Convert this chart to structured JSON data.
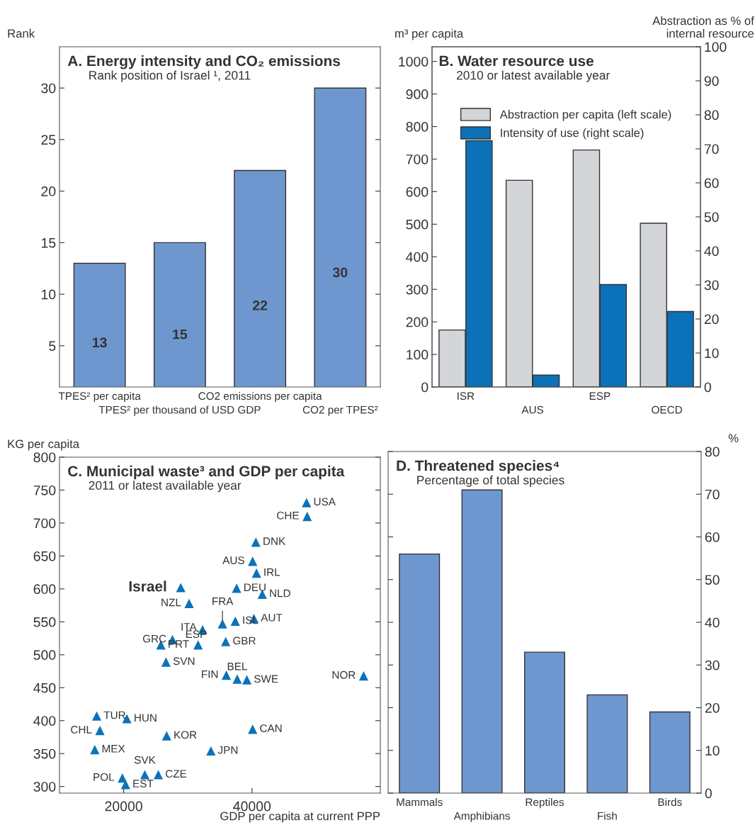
{
  "chart_data": [
    {
      "type": "bar",
      "title": "A. Energy intensity and CO₂ emissions",
      "subtitle": "Rank position of Israel ¹, 2011",
      "ylabel": "Rank",
      "categories": [
        "TPES² per capita",
        "TPES² per thousand of USD GDP",
        "CO2 emissions per capita",
        "CO2 per TPES²"
      ],
      "values": [
        13,
        15,
        22,
        30
      ],
      "color": "#6f97cf",
      "data_labels": true,
      "ylim": [
        1,
        34
      ],
      "yticks": [
        5,
        10,
        15,
        20,
        25,
        30
      ],
      "grid": false,
      "legend": false
    },
    {
      "type": "bar",
      "title": "B. Water resource use",
      "subtitle": "2010 or latest available year",
      "ylabel": "m³ per capita",
      "y2label": "Abstraction as % of\ninternal resource",
      "categories": [
        "ISR",
        "AUS",
        "ESP",
        "OECD"
      ],
      "series": [
        {
          "name": "Abstraction per capita (left scale)",
          "color": "#d4d5d8",
          "values": [
            175,
            635,
            728,
            503
          ]
        },
        {
          "name": "Intensity of use (right scale)",
          "color": "#0b72b9",
          "axis": "y2",
          "values": [
            72.4,
            3.5,
            30.1,
            22.2
          ]
        }
      ],
      "ylim": [
        0,
        1045
      ],
      "yticks": [
        0,
        100,
        200,
        300,
        400,
        500,
        600,
        700,
        800,
        900,
        1000
      ],
      "y2lim": [
        0,
        100
      ],
      "y2ticks": [
        0,
        10,
        20,
        30,
        40,
        50,
        60,
        70,
        80,
        90,
        100
      ],
      "grid": false,
      "legend": "top"
    },
    {
      "type": "scatter",
      "title": "C. Municipal waste³ and GDP per capita",
      "subtitle": "2011 or latest available year",
      "ylabel": "KG per capita",
      "xlabel": "GDP per capita at current PPP",
      "series": [
        {
          "color": "#0b72b9",
          "x": [
            28900,
            48500,
            48600,
            40600,
            40100,
            40700,
            37600,
            41600,
            30200,
            35400,
            37400,
            40300,
            32300,
            27600,
            25800,
            31600,
            35900,
            26600,
            36000,
            37700,
            39200,
            57400,
            15800,
            20500,
            16300,
            26700,
            40100,
            15500,
            33600,
            23300,
            25400,
            19800,
            20300
          ],
          "values": [
            602,
            731,
            710,
            671,
            642,
            624,
            601,
            592,
            578,
            547,
            551,
            555,
            538,
            523,
            515,
            515,
            520,
            489,
            469,
            463,
            462,
            468,
            407,
            403,
            385,
            377,
            387,
            356,
            354,
            318,
            318,
            313,
            303
          ]
        }
      ],
      "annotations": [
        {
          "text": "Israel",
          "x": 28900,
          "y": 602
        },
        {
          "text": "USA",
          "x": 48500,
          "y": 731
        },
        {
          "text": "CHE",
          "x": 48600,
          "y": 710
        },
        {
          "text": "DNK",
          "x": 40600,
          "y": 671
        },
        {
          "text": "AUS",
          "x": 40100,
          "y": 642
        },
        {
          "text": "IRL",
          "x": 40700,
          "y": 624
        },
        {
          "text": "DEU",
          "x": 37600,
          "y": 601
        },
        {
          "text": "NLD",
          "x": 41600,
          "y": 592
        },
        {
          "text": "NZL",
          "x": 30200,
          "y": 578
        },
        {
          "text": "FRA",
          "x": 35400,
          "y": 547
        },
        {
          "text": "ISL",
          "x": 37400,
          "y": 551
        },
        {
          "text": "AUT",
          "x": 40300,
          "y": 555
        },
        {
          "text": "ITA",
          "x": 32300,
          "y": 538
        },
        {
          "text": "GRC",
          "x": 27600,
          "y": 523
        },
        {
          "text": "PRT",
          "x": 25800,
          "y": 515
        },
        {
          "text": "ESP",
          "x": 31600,
          "y": 515
        },
        {
          "text": "GBR",
          "x": 35900,
          "y": 520
        },
        {
          "text": "SVN",
          "x": 26600,
          "y": 489
        },
        {
          "text": "FIN",
          "x": 36000,
          "y": 469
        },
        {
          "text": "BEL",
          "x": 37700,
          "y": 463
        },
        {
          "text": "SWE",
          "x": 39200,
          "y": 462
        },
        {
          "text": "NOR",
          "x": 57400,
          "y": 468
        },
        {
          "text": "TUR",
          "x": 15800,
          "y": 407
        },
        {
          "text": "HUN",
          "x": 20500,
          "y": 403
        },
        {
          "text": "CHL",
          "x": 16300,
          "y": 385
        },
        {
          "text": "KOR",
          "x": 26700,
          "y": 377
        },
        {
          "text": "CAN",
          "x": 40100,
          "y": 387
        },
        {
          "text": "MEX",
          "x": 15500,
          "y": 356
        },
        {
          "text": "JPN",
          "x": 33600,
          "y": 354
        },
        {
          "text": "SVK",
          "x": 23300,
          "y": 318
        },
        {
          "text": "CZE",
          "x": 25400,
          "y": 318
        },
        {
          "text": "POL",
          "x": 19800,
          "y": 313
        },
        {
          "text": "EST",
          "x": 20300,
          "y": 303
        }
      ],
      "marker": "triangle",
      "xlim": [
        10000,
        60000
      ],
      "xticks": [
        20000,
        40000
      ],
      "ylim": [
        290,
        800
      ],
      "yticks": [
        300,
        350,
        400,
        450,
        500,
        550,
        600,
        650,
        700,
        750,
        800
      ],
      "grid": false,
      "legend": false
    },
    {
      "type": "bar",
      "title": "D. Threatened species⁴",
      "subtitle": "Percentage of total species",
      "y2label": "%",
      "categories": [
        "Mammals",
        "Amphibians",
        "Reptiles",
        "Fish",
        "Birds"
      ],
      "series": [
        {
          "color": "#6f97cf",
          "axis": "y2",
          "values": [
            56,
            71,
            33,
            23,
            19
          ]
        }
      ],
      "y2lim": [
        0,
        80
      ],
      "y2ticks": [
        0,
        10,
        20,
        30,
        40,
        50,
        60,
        70,
        80
      ],
      "grid": false,
      "legend": false
    }
  ]
}
